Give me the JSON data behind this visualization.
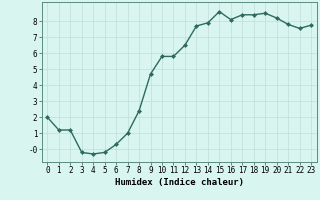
{
  "x": [
    0,
    1,
    2,
    3,
    4,
    5,
    6,
    7,
    8,
    9,
    10,
    11,
    12,
    13,
    14,
    15,
    16,
    17,
    18,
    19,
    20,
    21,
    22,
    23
  ],
  "y": [
    2.0,
    1.2,
    1.2,
    -0.2,
    -0.3,
    -0.2,
    0.3,
    1.0,
    2.4,
    4.7,
    5.8,
    5.8,
    6.5,
    7.7,
    7.9,
    8.6,
    8.1,
    8.4,
    8.4,
    8.5,
    8.2,
    7.8,
    7.55,
    7.75
  ],
  "line_color": "#2e6b5e",
  "marker": "D",
  "marker_size": 2.0,
  "background_color": "#d8f5f0",
  "grid_color": "#c0ddd8",
  "xlabel": "Humidex (Indice chaleur)",
  "xlim": [
    -0.5,
    23.5
  ],
  "ylim": [
    -0.8,
    9.2
  ],
  "yticks": [
    0,
    1,
    2,
    3,
    4,
    5,
    6,
    7,
    8
  ],
  "ytick_labels": [
    "-0",
    "1",
    "2",
    "3",
    "4",
    "5",
    "6",
    "7",
    "8"
  ],
  "xticks": [
    0,
    1,
    2,
    3,
    4,
    5,
    6,
    7,
    8,
    9,
    10,
    11,
    12,
    13,
    14,
    15,
    16,
    17,
    18,
    19,
    20,
    21,
    22,
    23
  ],
  "xlabel_fontsize": 6.5,
  "tick_fontsize": 5.5,
  "line_width": 1.0,
  "grid_linewidth": 0.5,
  "spine_color": "#5a8a80"
}
